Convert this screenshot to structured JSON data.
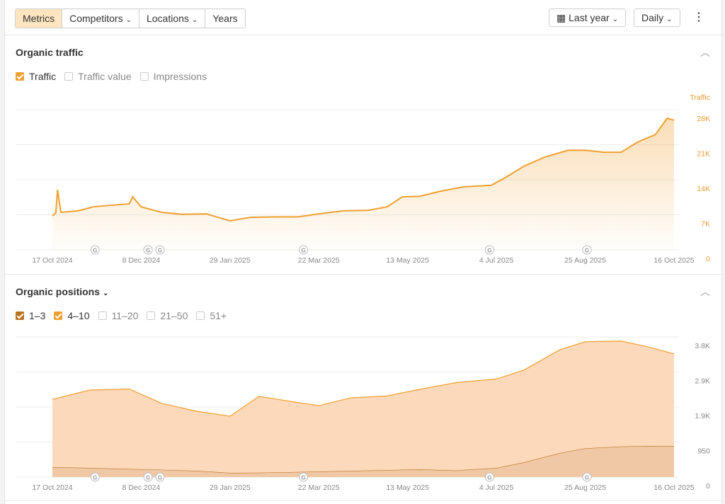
{
  "toolbar": {
    "tabs": [
      "Metrics",
      "Competitors",
      "Locations",
      "Years"
    ],
    "active_tab": 0,
    "period": "Last year",
    "interval": "Daily"
  },
  "sections": [
    {
      "title": "Organic traffic"
    },
    {
      "title": "Organic positions"
    }
  ],
  "chart_data": [
    {
      "type": "area",
      "y_label": "Traffic",
      "x": [
        "2024-10-17",
        "2024-10-19",
        "2024-10-20",
        "2024-10-22",
        "2024-11-01",
        "2024-11-10",
        "2024-11-20",
        "2024-12-01",
        "2024-12-03",
        "2024-12-08",
        "2024-12-20",
        "2025-01-01",
        "2025-01-15",
        "2025-01-29",
        "2025-02-10",
        "2025-02-25",
        "2025-03-10",
        "2025-03-22",
        "2025-04-05",
        "2025-04-20",
        "2025-05-01",
        "2025-05-10",
        "2025-05-20",
        "2025-06-01",
        "2025-06-15",
        "2025-07-01",
        "2025-07-10",
        "2025-07-20",
        "2025-08-01",
        "2025-08-15",
        "2025-08-25",
        "2025-09-05",
        "2025-09-15",
        "2025-09-25",
        "2025-10-05",
        "2025-10-12",
        "2025-10-16"
      ],
      "series": [
        {
          "name": "Traffic",
          "color": "#f0a030",
          "values": [
            6800,
            7400,
            12000,
            7500,
            7800,
            8600,
            8900,
            9200,
            10600,
            8600,
            7500,
            7100,
            7200,
            5800,
            6500,
            6600,
            6600,
            7200,
            7800,
            7900,
            8600,
            10600,
            10700,
            11700,
            12600,
            12900,
            14600,
            16700,
            18500,
            19900,
            19900,
            19500,
            19500,
            21600,
            23000,
            26300,
            25900
          ]
        }
      ],
      "inactive_series": [
        "Traffic value",
        "Impressions"
      ],
      "xlim": [
        "2024-10-17",
        "2025-10-16"
      ],
      "xticks": [
        {
          "value": "2024-10-17",
          "label": "17 Oct 2024"
        },
        {
          "value": "2024-12-08",
          "label": "8 Dec 2024"
        },
        {
          "value": "2025-01-29",
          "label": "29 Jan 2025"
        },
        {
          "value": "2025-03-22",
          "label": "22 Mar 2025"
        },
        {
          "value": "2025-05-13",
          "label": "13 May 2025"
        },
        {
          "value": "2025-07-04",
          "label": "4 Jul 2025"
        },
        {
          "value": "2025-08-25",
          "label": "25 Aug 2025"
        },
        {
          "value": "2025-10-16",
          "label": "16 Oct 2025"
        }
      ],
      "ylim": [
        0,
        28000
      ],
      "yticks": [
        0,
        {
          "value": 7000,
          "label": "7K"
        },
        {
          "value": 14000,
          "label": "14K"
        },
        {
          "value": 21000,
          "label": "21K"
        },
        {
          "value": 28000,
          "label": "28K"
        }
      ],
      "annotations": [
        {
          "x": "2024-11-11",
          "label": "G"
        },
        {
          "x": "2024-12-12",
          "label": "G"
        },
        {
          "x": "2024-12-19",
          "label": "G"
        },
        {
          "x": "2025-03-13",
          "label": "G"
        },
        {
          "x": "2025-06-30",
          "label": "G"
        },
        {
          "x": "2025-08-26",
          "label": "G"
        }
      ],
      "grid": true
    },
    {
      "type": "stacked-area",
      "x": [
        "2024-10-17",
        "2024-11-08",
        "2024-12-01",
        "2024-12-20",
        "2025-01-10",
        "2025-01-29",
        "2025-02-15",
        "2025-03-10",
        "2025-03-22",
        "2025-04-10",
        "2025-05-01",
        "2025-05-20",
        "2025-06-10",
        "2025-07-04",
        "2025-07-20",
        "2025-08-10",
        "2025-08-25",
        "2025-09-15",
        "2025-10-01",
        "2025-10-16"
      ],
      "series": [
        {
          "name": "1–3",
          "color": "#b8741f",
          "fill": "#f0c8a6",
          "values": [
            270,
            250,
            220,
            200,
            170,
            115,
            120,
            140,
            150,
            170,
            190,
            210,
            180,
            250,
            400,
            650,
            780,
            830,
            845,
            840
          ]
        },
        {
          "name": "4–10",
          "color": "#f0a030",
          "fill": "#fcd9bb",
          "values": [
            1840,
            2110,
            2170,
            1800,
            1610,
            1535,
            2070,
            1880,
            1790,
            1980,
            2010,
            2170,
            2380,
            2410,
            2500,
            2800,
            2890,
            2860,
            2685,
            2500
          ]
        }
      ],
      "inactive_series": [
        "11–20",
        "21–50",
        "51+"
      ],
      "xlim": [
        "2024-10-17",
        "2025-10-16"
      ],
      "xticks": [
        {
          "value": "2024-10-17",
          "label": "17 Oct 2024"
        },
        {
          "value": "2024-12-08",
          "label": "8 Dec 2024"
        },
        {
          "value": "2025-01-29",
          "label": "29 Jan 2025"
        },
        {
          "value": "2025-03-22",
          "label": "22 Mar 2025"
        },
        {
          "value": "2025-05-13",
          "label": "13 May 2025"
        },
        {
          "value": "2025-07-04",
          "label": "4 Jul 2025"
        },
        {
          "value": "2025-08-25",
          "label": "25 Aug 2025"
        },
        {
          "value": "2025-10-16",
          "label": "16 Oct 2025"
        }
      ],
      "ylim": [
        0,
        3800
      ],
      "yticks": [
        0,
        950,
        {
          "value": 1900,
          "label": "1.9K"
        },
        {
          "value": 2850,
          "label": "2.9K"
        },
        {
          "value": 3800,
          "label": "3.8K"
        }
      ],
      "annotations": [
        {
          "x": "2024-11-11",
          "label": "G"
        },
        {
          "x": "2024-12-12",
          "label": "G"
        },
        {
          "x": "2024-12-19",
          "label": "G"
        },
        {
          "x": "2025-03-13",
          "label": "G"
        },
        {
          "x": "2025-06-30",
          "label": "G"
        },
        {
          "x": "2025-08-26",
          "label": "G"
        }
      ],
      "grid": true
    }
  ]
}
